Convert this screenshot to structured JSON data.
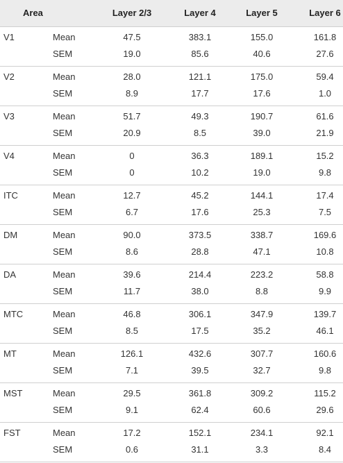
{
  "header": {
    "area": "Area",
    "layer23": "Layer 2/3",
    "layer4": "Layer 4",
    "layer5": "Layer 5",
    "layer6": "Layer 6"
  },
  "rows": [
    {
      "area": "V1",
      "mean_label": "Mean",
      "sem_label": "SEM",
      "mean": [
        "47.5",
        "383.1",
        "155.0",
        "161.8"
      ],
      "sem": [
        "19.0",
        "85.6",
        "40.6",
        "27.6"
      ]
    },
    {
      "area": "V2",
      "mean_label": "Mean",
      "sem_label": "SEM",
      "mean": [
        "28.0",
        "121.1",
        "175.0",
        "59.4"
      ],
      "sem": [
        "8.9",
        "17.7",
        "17.6",
        "1.0"
      ]
    },
    {
      "area": "V3",
      "mean_label": "Mean",
      "sem_label": "SEM",
      "mean": [
        "51.7",
        "49.3",
        "190.7",
        "61.6"
      ],
      "sem": [
        "20.9",
        "8.5",
        "39.0",
        "21.9"
      ]
    },
    {
      "area": "V4",
      "mean_label": "Mean",
      "sem_label": "SEM",
      "mean": [
        "0",
        "36.3",
        "189.1",
        "15.2"
      ],
      "sem": [
        "0",
        "10.2",
        "19.0",
        "9.8"
      ]
    },
    {
      "area": "ITC",
      "mean_label": "Mean",
      "sem_label": "SEM",
      "mean": [
        "12.7",
        "45.2",
        "144.1",
        "17.4"
      ],
      "sem": [
        "6.7",
        "17.6",
        "25.3",
        "7.5"
      ]
    },
    {
      "area": "DM",
      "mean_label": "Mean",
      "sem_label": "SEM",
      "mean": [
        "90.0",
        "373.5",
        "338.7",
        "169.6"
      ],
      "sem": [
        "8.6",
        "28.8",
        "47.1",
        "10.8"
      ]
    },
    {
      "area": "DA",
      "mean_label": "Mean",
      "sem_label": "SEM",
      "mean": [
        "39.6",
        "214.4",
        "223.2",
        "58.8"
      ],
      "sem": [
        "11.7",
        "38.0",
        "8.8",
        "9.9"
      ]
    },
    {
      "area": "MTC",
      "mean_label": "Mean",
      "sem_label": "SEM",
      "mean": [
        "46.8",
        "306.1",
        "347.9",
        "139.7"
      ],
      "sem": [
        "8.5",
        "17.5",
        "35.2",
        "46.1"
      ]
    },
    {
      "area": "MT",
      "mean_label": "Mean",
      "sem_label": "SEM",
      "mean": [
        "126.1",
        "432.6",
        "307.7",
        "160.6"
      ],
      "sem": [
        "7.1",
        "39.5",
        "32.7",
        "9.8"
      ]
    },
    {
      "area": "MST",
      "mean_label": "Mean",
      "sem_label": "SEM",
      "mean": [
        "29.5",
        "361.8",
        "309.2",
        "115.2"
      ],
      "sem": [
        "9.1",
        "62.4",
        "60.6",
        "29.6"
      ]
    },
    {
      "area": "FST",
      "mean_label": "Mean",
      "sem_label": "SEM",
      "mean": [
        "17.2",
        "152.1",
        "234.1",
        "92.1"
      ],
      "sem": [
        "0.6",
        "31.1",
        "3.3",
        "8.4"
      ]
    }
  ]
}
